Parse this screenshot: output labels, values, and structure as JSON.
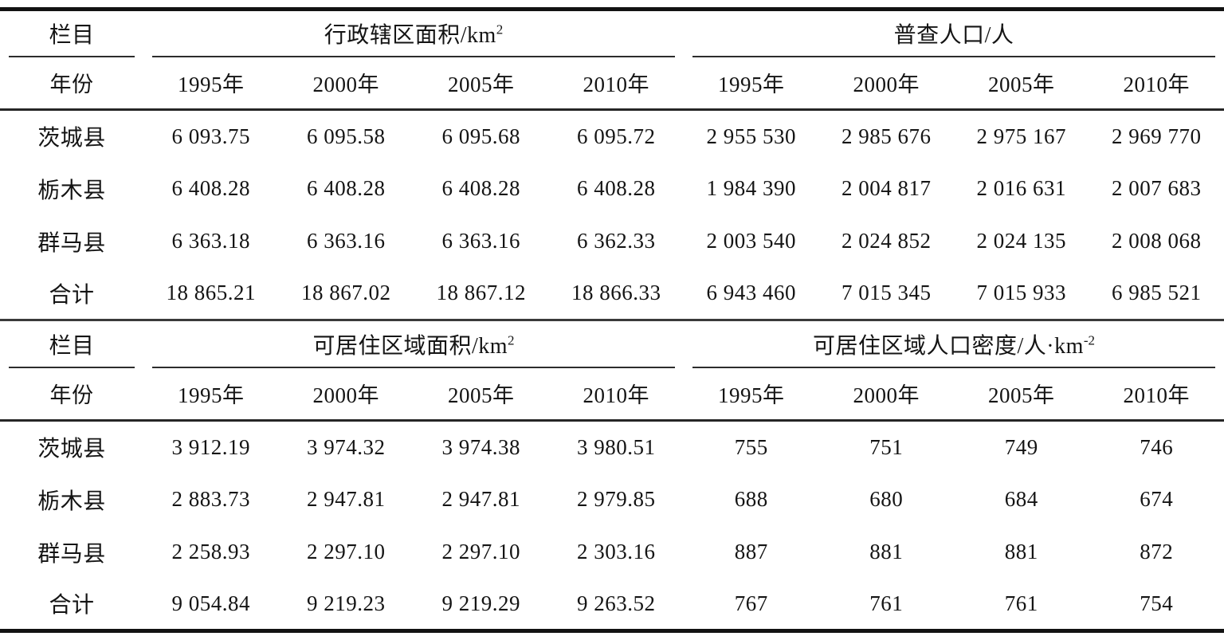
{
  "table": {
    "blocks": [
      {
        "stub_top": "栏目",
        "stub_bottom": "年份",
        "left_group": {
          "title": "行政辖区面积/km",
          "sup": "2"
        },
        "right_group": {
          "title": "普查人口/人",
          "sup": ""
        },
        "years": [
          "1995年",
          "2000年",
          "2005年",
          "2010年"
        ],
        "rows": [
          {
            "label": "茨城县",
            "cells": [
              "6 093.75",
              "6 095.58",
              "6 095.68",
              "6 095.72",
              "2 955 530",
              "2 985 676",
              "2 975 167",
              "2 969 770"
            ]
          },
          {
            "label": "栃木县",
            "cells": [
              "6 408.28",
              "6 408.28",
              "6 408.28",
              "6 408.28",
              "1 984 390",
              "2 004 817",
              "2 016 631",
              "2 007 683"
            ]
          },
          {
            "label": "群马县",
            "cells": [
              "6 363.18",
              "6 363.16",
              "6 363.16",
              "6 362.33",
              "2 003 540",
              "2 024 852",
              "2 024 135",
              "2 008 068"
            ]
          },
          {
            "label": "合计",
            "cells": [
              "18 865.21",
              "18 867.02",
              "18 867.12",
              "18 866.33",
              "6 943 460",
              "7 015 345",
              "7 015 933",
              "6 985 521"
            ]
          }
        ]
      },
      {
        "stub_top": "栏目",
        "stub_bottom": "年份",
        "left_group": {
          "title": "可居住区域面积/km",
          "sup": "2"
        },
        "right_group": {
          "title": "可居住区域人口密度/人·km",
          "sup": "-2"
        },
        "years": [
          "1995年",
          "2000年",
          "2005年",
          "2010年"
        ],
        "rows": [
          {
            "label": "茨城县",
            "cells": [
              "3 912.19",
              "3 974.32",
              "3 974.38",
              "3 980.51",
              "755",
              "751",
              "749",
              "746"
            ]
          },
          {
            "label": "栃木县",
            "cells": [
              "2 883.73",
              "2 947.81",
              "2 947.81",
              "2 979.85",
              "688",
              "680",
              "684",
              "674"
            ]
          },
          {
            "label": "群马县",
            "cells": [
              "2 258.93",
              "2 297.10",
              "2 297.10",
              "2 303.16",
              "887",
              "881",
              "881",
              "872"
            ]
          },
          {
            "label": "合计",
            "cells": [
              "9 054.84",
              "9 219.23",
              "9 219.29",
              "9 263.52",
              "767",
              "761",
              "761",
              "754"
            ]
          }
        ]
      }
    ]
  }
}
